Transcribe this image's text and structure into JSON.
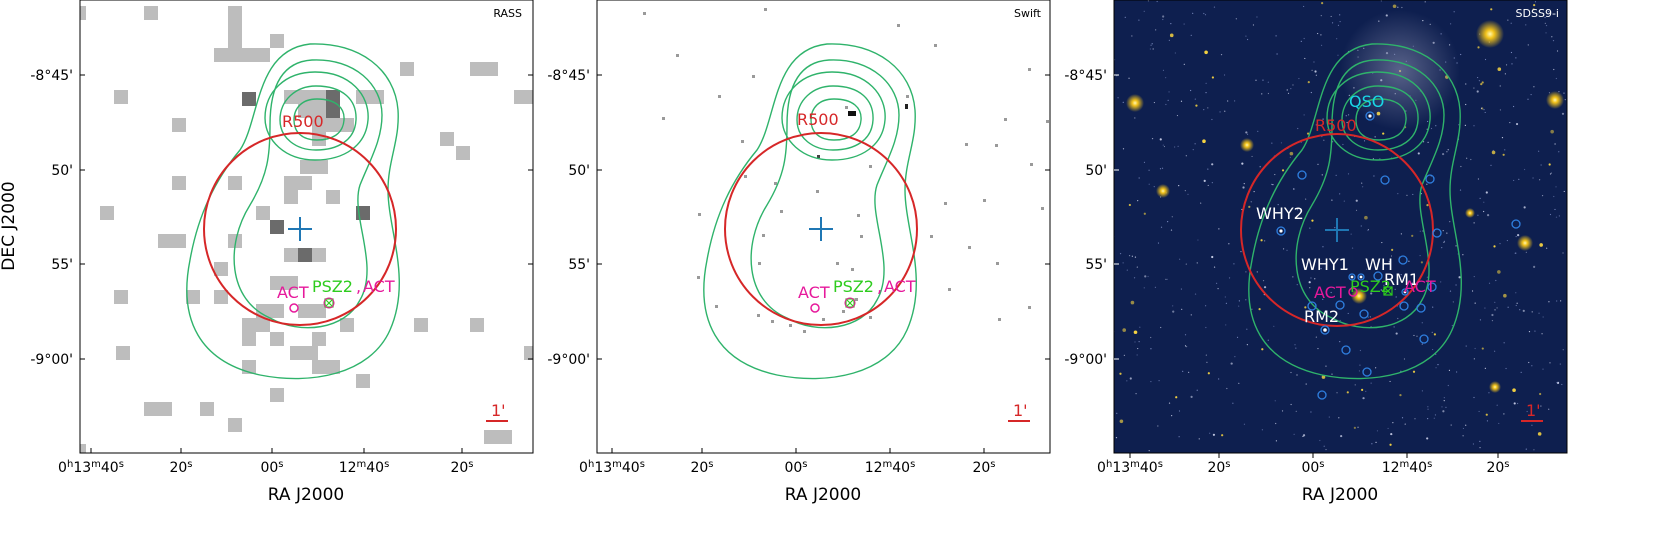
{
  "panels": [
    {
      "name": "RASS",
      "x_axis_label": "RA J2000",
      "y_axis_label": "DEC J2000",
      "y_ticks": [
        "-8°45'",
        "50'",
        "55'",
        "-9°00'"
      ],
      "x_ticks": [
        "0h13m40s",
        "20s",
        "00s",
        "12m40s",
        "20s"
      ],
      "labels": {
        "r500": "R500",
        "act_left": "ACT",
        "psz2": "PSZ2",
        "comma": ",",
        "act_right": "ACT",
        "scale": "1'"
      }
    },
    {
      "name": "Swift",
      "x_axis_label": "RA J2000",
      "y_ticks": [
        "-8°45'",
        "50'",
        "55'",
        "-9°00'"
      ],
      "x_ticks": [
        "0h13m40s",
        "20s",
        "00s",
        "12m40s",
        "20s"
      ],
      "labels": {
        "r500": "R500",
        "act_left": "ACT",
        "psz2": "PSZ2",
        "comma": ",",
        "act_right": "ACT",
        "scale": "1'"
      }
    },
    {
      "name": "SDSS9-i",
      "x_axis_label": "RA J2000",
      "y_ticks": [
        "-8°45'",
        "50'",
        "55'",
        "-9°00'"
      ],
      "x_ticks": [
        "0h13m40s",
        "20s",
        "00s",
        "12m40s",
        "20s"
      ],
      "labels": {
        "r500": "R500",
        "act_left": "ACT",
        "psz2": "PSZ2",
        "act_right": "ACT",
        "scale": "1'",
        "qso": "QSO",
        "why1": "WHY1",
        "why2": "WHY2",
        "wh": "WH",
        "rm1": "RM1",
        "rm2": "RM2"
      }
    }
  ],
  "colors": {
    "contour": "#2fb36b",
    "r500": "#d62728",
    "center_cross": "#1f77b4",
    "act": "#e6199b",
    "psz2": "#2ecc1e",
    "scale_bar": "#d62728",
    "sky_bg": "#0e1f4f",
    "member_circles": "#2f7fe0"
  },
  "icons": {
    "center": "plus-cross-icon",
    "act_marker": "circle-marker-icon",
    "psz2_marker": "crossed-square-marker-icon"
  }
}
